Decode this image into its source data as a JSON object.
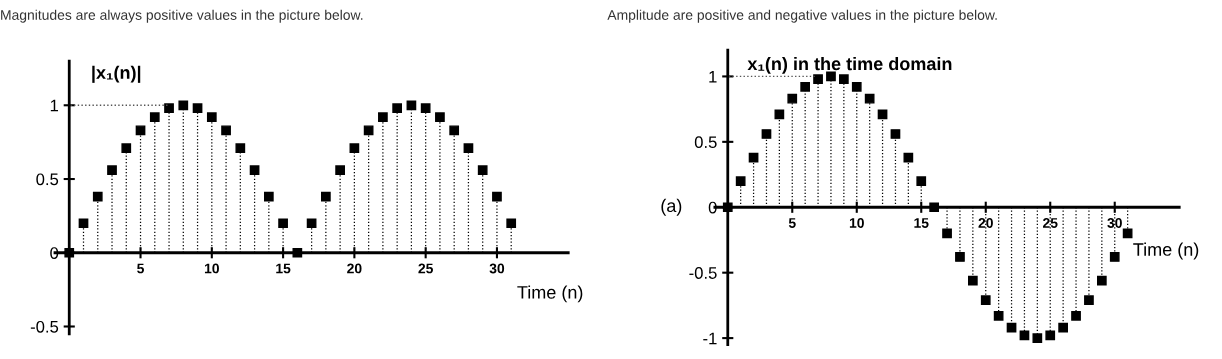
{
  "chart_data": [
    {
      "type": "lollipop",
      "annotations": [
        "Magnitudes are always positive values in the picture below."
      ],
      "ylabel": "|x₁(n)|",
      "xlabel": "Time (n)",
      "x": [
        0,
        1,
        2,
        3,
        4,
        5,
        6,
        7,
        8,
        9,
        10,
        11,
        12,
        13,
        14,
        15,
        16,
        17,
        18,
        19,
        20,
        21,
        22,
        23,
        24,
        25,
        26,
        27,
        28,
        29,
        30,
        31
      ],
      "series": [
        {
          "color": "#000000",
          "values": [
            0,
            0.2,
            0.38,
            0.56,
            0.71,
            0.83,
            0.92,
            0.98,
            1,
            0.98,
            0.92,
            0.83,
            0.71,
            0.56,
            0.38,
            0.2,
            0,
            0.2,
            0.38,
            0.56,
            0.71,
            0.83,
            0.92,
            0.98,
            1,
            0.98,
            0.92,
            0.83,
            0.71,
            0.56,
            0.38,
            0.2
          ]
        }
      ],
      "marker": "square",
      "line_style": "dotted",
      "grid": false,
      "legend": false,
      "xlim": [
        -1,
        35
      ],
      "xticks": [
        5,
        10,
        15,
        20,
        25,
        30
      ],
      "ylim": [
        -0.55,
        1.3
      ],
      "yticks": [
        -0.5,
        0,
        0.5,
        1
      ],
      "ref_lines": [
        {
          "axis": "y",
          "value": 1,
          "color": "#555555",
          "line_style": "dotted"
        }
      ]
    },
    {
      "type": "lollipop",
      "annotations": [
        "Amplitude are positive and negative values in the picture below.",
        "(a)"
      ],
      "ylabel": "x₁(n) in the time domain",
      "xlabel": "Time (n)",
      "x": [
        0,
        1,
        2,
        3,
        4,
        5,
        6,
        7,
        8,
        9,
        10,
        11,
        12,
        13,
        14,
        15,
        16,
        17,
        18,
        19,
        20,
        21,
        22,
        23,
        24,
        25,
        26,
        27,
        28,
        29,
        30,
        31
      ],
      "series": [
        {
          "color": "#000000",
          "values": [
            0,
            0.2,
            0.38,
            0.56,
            0.71,
            0.83,
            0.92,
            0.98,
            1,
            0.98,
            0.92,
            0.83,
            0.71,
            0.56,
            0.38,
            0.2,
            0,
            -0.2,
            -0.38,
            -0.56,
            -0.71,
            -0.83,
            -0.92,
            -0.98,
            -1,
            -0.98,
            -0.92,
            -0.83,
            -0.71,
            -0.56,
            -0.38,
            -0.2
          ]
        }
      ],
      "marker": "square",
      "line_style": "dotted",
      "grid": false,
      "legend": false,
      "xlim": [
        -1,
        35
      ],
      "xticks": [
        5,
        10,
        15,
        20,
        25,
        30
      ],
      "ylim": [
        -1.05,
        1.2
      ],
      "yticks": [
        -1,
        -0.5,
        0,
        0.5,
        1
      ],
      "ref_lines": [
        {
          "axis": "y",
          "value": 1,
          "color": "#555555",
          "line_style": "dotted"
        }
      ]
    }
  ]
}
